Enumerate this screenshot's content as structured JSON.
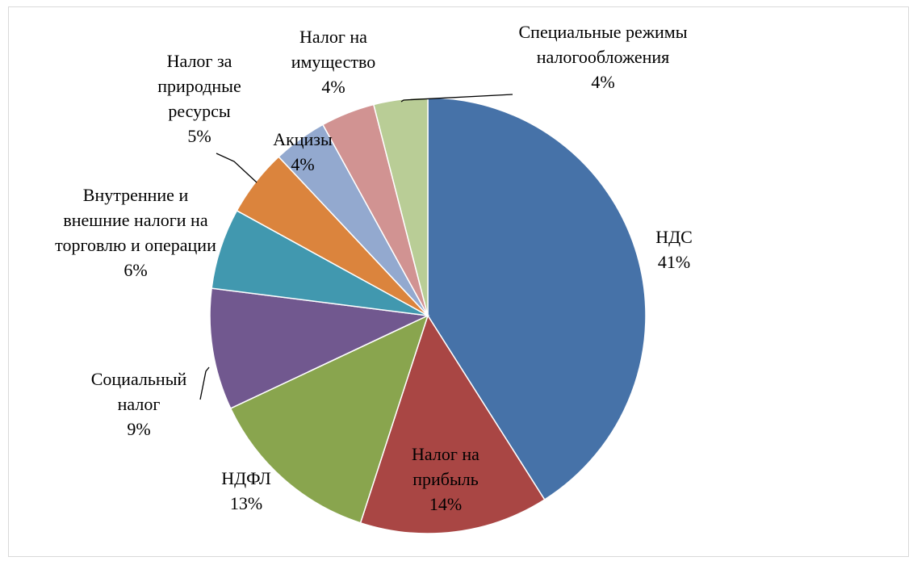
{
  "chart_data": {
    "type": "pie",
    "categories": [
      "НДС",
      "Налог на прибыль",
      "НДФЛ",
      "Социальный налог",
      "Внутренние и внешние налоги на торговлю и операции",
      "Налог за природные ресурсы",
      "Акцизы",
      "Налог на имущество",
      "Специальные режимы налогообложения"
    ],
    "values": [
      41,
      14,
      13,
      9,
      6,
      5,
      4,
      4,
      4
    ],
    "value_labels": [
      "41%",
      "14%",
      "13%",
      "9%",
      "6%",
      "5%",
      "4%",
      "4%",
      "4%"
    ],
    "colors": [
      "#4672a8",
      "#a94644",
      "#89a54e",
      "#71588f",
      "#4198af",
      "#db843d",
      "#93a9cf",
      "#d19392",
      "#b9cd96"
    ]
  }
}
